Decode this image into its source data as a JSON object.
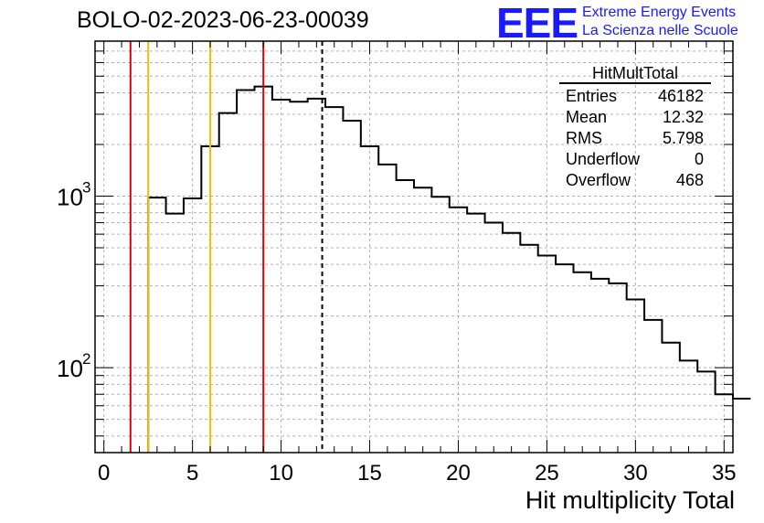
{
  "title": "BOLO-02-2023-06-23-00039",
  "logo": {
    "text": "EEE",
    "line1": "Extreme Energy Events",
    "line2": "La Scienza nelle Scuole",
    "color": "#1a1aff"
  },
  "stats_box": {
    "title": "HitMultTotal",
    "rows": [
      {
        "label": "Entries",
        "value": "46182"
      },
      {
        "label": "Mean",
        "value": "12.32"
      },
      {
        "label": "RMS",
        "value": "5.798"
      },
      {
        "label": "Underflow",
        "value": "0"
      },
      {
        "label": "Overflow",
        "value": "468"
      }
    ]
  },
  "chart_data": {
    "type": "histogram",
    "title": "BOLO-02-2023-06-23-00039",
    "xlabel": "Hit multiplicity Total",
    "ylabel": "",
    "xlim": [
      -0.5,
      35.5
    ],
    "ylim": [
      32,
      8000
    ],
    "ylog": true,
    "grid": true,
    "x_ticks": [
      0,
      5,
      10,
      15,
      20,
      25,
      30,
      35
    ],
    "y_tick_labels": [
      {
        "value": 100,
        "label": "10",
        "exp": "2"
      },
      {
        "value": 1000,
        "label": "10",
        "exp": "3"
      }
    ],
    "bin_width": 1,
    "bins_start": -0.5,
    "counts": [
      0,
      0,
      0,
      980,
      790,
      970,
      1950,
      3050,
      4150,
      4350,
      3650,
      3550,
      3700,
      3300,
      2750,
      1950,
      1530,
      1240,
      1120,
      990,
      860,
      790,
      700,
      610,
      520,
      450,
      400,
      360,
      330,
      310,
      250,
      190,
      140,
      110,
      95,
      70,
      66
    ],
    "markers": [
      {
        "x": 1.5,
        "color": "#e00000",
        "style": "solid"
      },
      {
        "x": 2.5,
        "color": "#f0c000",
        "style": "solid"
      },
      {
        "x": 6.0,
        "color": "#f0c000",
        "style": "solid"
      },
      {
        "x": 9.0,
        "color": "#e00000",
        "style": "solid"
      },
      {
        "x": 12.32,
        "color": "#000000",
        "style": "dashed"
      }
    ],
    "line_color": "#000000"
  }
}
